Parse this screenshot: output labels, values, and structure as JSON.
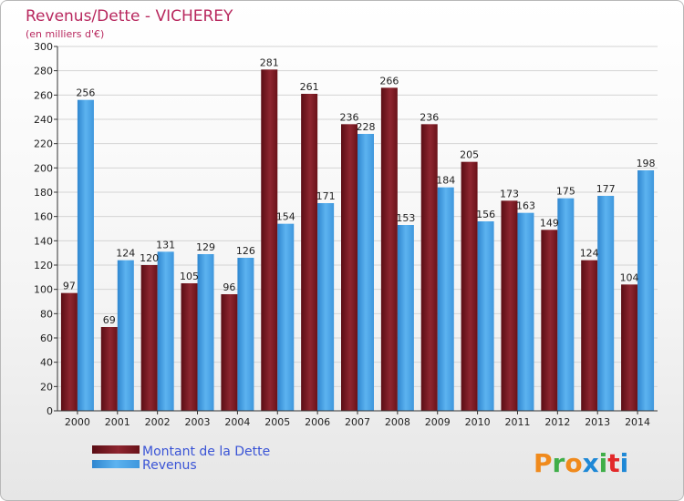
{
  "chart_data": {
    "type": "bar",
    "title": "Revenus/Dette - VICHEREY",
    "subtitle": "(en milliers d'€)",
    "categories": [
      "2000",
      "2001",
      "2002",
      "2003",
      "2004",
      "2005",
      "2006",
      "2007",
      "2008",
      "2009",
      "2010",
      "2011",
      "2012",
      "2013",
      "2014"
    ],
    "series": [
      {
        "name": "Montant de la Dette",
        "color": "#8a1f28",
        "values": [
          97,
          69,
          120,
          105,
          96,
          281,
          261,
          236,
          266,
          236,
          205,
          173,
          149,
          124,
          104
        ]
      },
      {
        "name": "Revenus",
        "color": "#4aa3e8",
        "values": [
          256,
          124,
          131,
          129,
          126,
          154,
          171,
          228,
          153,
          184,
          156,
          163,
          175,
          177,
          198
        ]
      }
    ],
    "ylim": [
      0,
      300
    ],
    "yticks": [
      0,
      20,
      40,
      60,
      80,
      100,
      120,
      140,
      160,
      180,
      200,
      220,
      240,
      260,
      280,
      300
    ],
    "grid": true,
    "legend_position": "bottom-left"
  },
  "branding": {
    "logo_letters": [
      "P",
      "r",
      "o",
      "x",
      "i",
      "t",
      "i"
    ],
    "logo_colors": [
      "#f08a1c",
      "#3fae49",
      "#f08a1c",
      "#1e88d6",
      "#3fae49",
      "#e2292a",
      "#1e88d6"
    ]
  }
}
